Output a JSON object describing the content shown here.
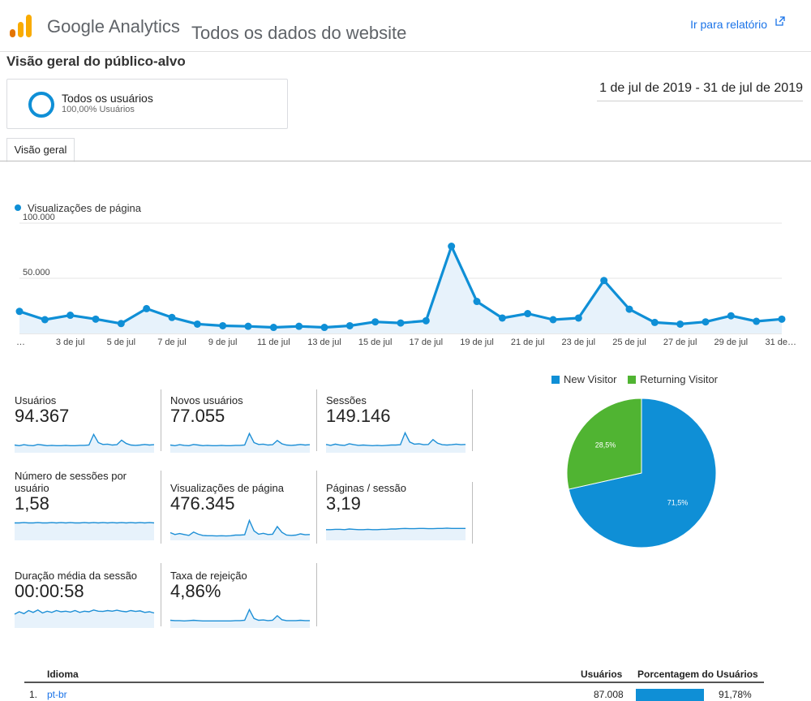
{
  "header": {
    "product": "Google Analytics",
    "view": "Todos os dados do website",
    "report_link": "Ir para relatório"
  },
  "page_title": "Visão geral do público-alvo",
  "segment": {
    "name": "Todos os usuários",
    "share": "100,00% Usuários"
  },
  "date_range": "1 de jul de 2019 - 31 de jul de 2019",
  "tabs": [
    {
      "label": "Visão geral"
    }
  ],
  "colors": {
    "accent": "#0f8fd6",
    "new_visitor": "#0f8fd6",
    "returning_visitor": "#50b432",
    "link": "#1a73e8"
  },
  "chart_data": [
    {
      "type": "line",
      "series": [
        {
          "name": "Visualizações de página",
          "values": [
            20000,
            12500,
            16500,
            13000,
            9000,
            22500,
            14500,
            8500,
            7000,
            6500,
            5500,
            6500,
            5500,
            7000,
            10500,
            9500,
            11500,
            79000,
            29000,
            14000,
            18000,
            12500,
            14000,
            48000,
            22000,
            10000,
            8500,
            10500,
            16000,
            11000,
            13000
          ]
        }
      ],
      "y_tick_labels": [
        "50.000",
        "100.000"
      ],
      "ylim": [
        0,
        100000
      ],
      "x_tick_labels": [
        "…",
        "3 de jul",
        "5 de jul",
        "7 de jul",
        "9 de jul",
        "11 de jul",
        "13 de jul",
        "15 de jul",
        "17 de jul",
        "19 de jul",
        "21 de jul",
        "23 de jul",
        "25 de jul",
        "27 de jul",
        "29 de jul",
        "31 de…"
      ],
      "legend": "top-left",
      "grid": true
    },
    {
      "type": "pie",
      "labels": [
        "New Visitor",
        "Returning Visitor"
      ],
      "values": [
        71.5,
        28.5
      ],
      "value_labels": [
        "71,5%",
        "28,5%"
      ],
      "legend": "top"
    }
  ],
  "metrics": [
    {
      "label": "Usuários",
      "value": "94.367",
      "spark": [
        20,
        18,
        21,
        19,
        18,
        22,
        20,
        18,
        19,
        18,
        18,
        19,
        18,
        18,
        19,
        19,
        20,
        55,
        28,
        22,
        23,
        20,
        21,
        36,
        25,
        20,
        19,
        20,
        22,
        20,
        21
      ]
    },
    {
      "label": "Novos usuários",
      "value": "77.055",
      "spark": [
        20,
        18,
        21,
        19,
        18,
        22,
        20,
        18,
        19,
        18,
        18,
        19,
        18,
        18,
        19,
        19,
        20,
        58,
        28,
        22,
        23,
        20,
        21,
        35,
        24,
        20,
        19,
        20,
        22,
        20,
        21
      ]
    },
    {
      "label": "Sessões",
      "value": "149.146",
      "spark": [
        22,
        19,
        23,
        20,
        19,
        24,
        21,
        19,
        20,
        19,
        18,
        19,
        18,
        19,
        20,
        20,
        21,
        60,
        30,
        23,
        24,
        21,
        22,
        38,
        26,
        21,
        20,
        21,
        23,
        21,
        22
      ]
    },
    {
      "label": "Número de sessões por usuário",
      "value": "1,58",
      "spark": [
        52,
        52,
        53,
        52,
        52,
        53,
        52,
        52,
        53,
        52,
        53,
        52,
        53,
        52,
        52,
        53,
        52,
        53,
        52,
        53,
        52,
        53,
        52,
        53,
        52,
        53,
        52,
        53,
        52,
        53,
        52
      ]
    },
    {
      "label": "Visualizações de página",
      "value": "476.345",
      "spark": [
        20,
        14,
        17,
        14,
        11,
        22,
        15,
        11,
        10,
        10,
        9,
        10,
        9,
        10,
        12,
        12,
        13,
        60,
        26,
        15,
        18,
        14,
        15,
        40,
        21,
        12,
        11,
        12,
        16,
        13,
        14
      ]
    },
    {
      "label": "Páginas / sessão",
      "value": "3,19",
      "spark": [
        30,
        30,
        31,
        31,
        30,
        32,
        31,
        30,
        30,
        31,
        30,
        30,
        31,
        31,
        32,
        32,
        33,
        34,
        33,
        33,
        34,
        34,
        33,
        33,
        34,
        34,
        35,
        34,
        34,
        34,
        34
      ]
    },
    {
      "label": "Duração média da sessão",
      "value": "00:00:58",
      "spark": [
        40,
        48,
        42,
        52,
        46,
        54,
        44,
        50,
        46,
        52,
        48,
        50,
        47,
        52,
        46,
        50,
        48,
        54,
        50,
        49,
        52,
        50,
        53,
        50,
        48,
        52,
        49,
        51,
        46,
        48,
        44
      ]
    },
    {
      "label": "Taxa de rejeição",
      "value": "4,86%",
      "spark": [
        20,
        19,
        19,
        18,
        19,
        20,
        19,
        18,
        18,
        18,
        18,
        18,
        18,
        18,
        19,
        19,
        20,
        55,
        26,
        20,
        21,
        19,
        20,
        35,
        22,
        19,
        19,
        19,
        20,
        19,
        19
      ]
    }
  ],
  "language_table": {
    "headers": {
      "language": "Idioma",
      "users": "Usuários",
      "pct": "Porcentagem do Usuários"
    },
    "rows": [
      {
        "index": "1.",
        "language": "pt-br",
        "users": "87.008",
        "pct": "91,78%",
        "fraction": 0.9178
      }
    ]
  }
}
